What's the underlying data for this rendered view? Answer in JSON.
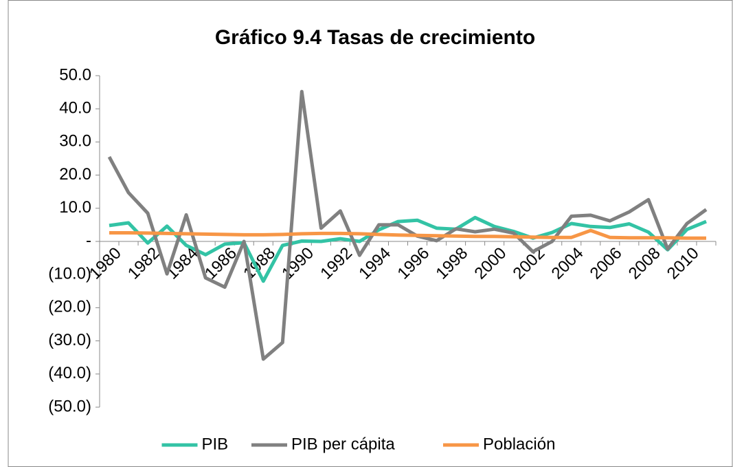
{
  "chart_data": {
    "type": "line",
    "title": "Gráfico 9.4 Tasas de crecimiento",
    "categories": [
      "1980",
      null,
      "1982",
      null,
      "1984",
      null,
      "1986",
      null,
      "1988",
      null,
      "1990",
      null,
      "1992",
      null,
      "1994",
      null,
      "1996",
      null,
      "1998",
      null,
      "2000",
      null,
      "2002",
      null,
      "2004",
      null,
      "2006",
      null,
      "2008",
      null,
      "2010",
      null
    ],
    "series": [
      {
        "name": "PIB",
        "color": "#33c3a5",
        "values": [
          4.8,
          5.6,
          -0.5,
          4.6,
          -1.2,
          -4.0,
          -0.8,
          -0.4,
          -12.0,
          -1.2,
          0.1,
          0.0,
          0.8,
          0.0,
          3.5,
          6.0,
          6.4,
          4.0,
          3.7,
          7.2,
          4.5,
          3.0,
          1.0,
          2.7,
          5.4,
          4.5,
          4.2,
          5.3,
          2.8,
          -2.5,
          3.6,
          6.0
        ]
      },
      {
        "name": "PIB per cápita",
        "color": "#808080",
        "values": [
          25.5,
          14.7,
          8.5,
          -9.8,
          8.0,
          -11.0,
          -13.8,
          0.0,
          -35.5,
          -30.5,
          45.2,
          4.0,
          9.2,
          -4.2,
          5.0,
          5.0,
          1.6,
          0.2,
          3.8,
          2.9,
          3.7,
          2.5,
          -3.1,
          0.0,
          7.6,
          7.9,
          6.2,
          8.9,
          12.6,
          -2.3,
          5.4,
          9.6
        ]
      },
      {
        "name": "Población",
        "color": "#f79646",
        "values": [
          2.6,
          2.6,
          2.5,
          2.4,
          2.3,
          2.2,
          2.1,
          2.0,
          2.0,
          2.1,
          2.3,
          2.4,
          2.4,
          2.3,
          2.1,
          1.9,
          1.8,
          1.7,
          1.6,
          1.5,
          1.5,
          1.4,
          1.3,
          1.2,
          1.2,
          3.3,
          1.2,
          1.1,
          1.1,
          1.1,
          1.0,
          1.0
        ]
      }
    ],
    "ylim": [
      -50,
      50
    ],
    "yticks": [
      {
        "value": -50,
        "label": "(50.0)"
      },
      {
        "value": -40,
        "label": "(40.0)"
      },
      {
        "value": -30,
        "label": "(30.0)"
      },
      {
        "value": -20,
        "label": "(20.0)"
      },
      {
        "value": -10,
        "label": "(10.0)"
      },
      {
        "value": 0,
        "label": "-"
      },
      {
        "value": 10,
        "label": "10.0"
      },
      {
        "value": 20,
        "label": "20.0"
      },
      {
        "value": 30,
        "label": "30.0"
      },
      {
        "value": 40,
        "label": "40.0"
      },
      {
        "value": 50,
        "label": "50.0"
      }
    ],
    "grid": false,
    "legend": "bottom"
  }
}
